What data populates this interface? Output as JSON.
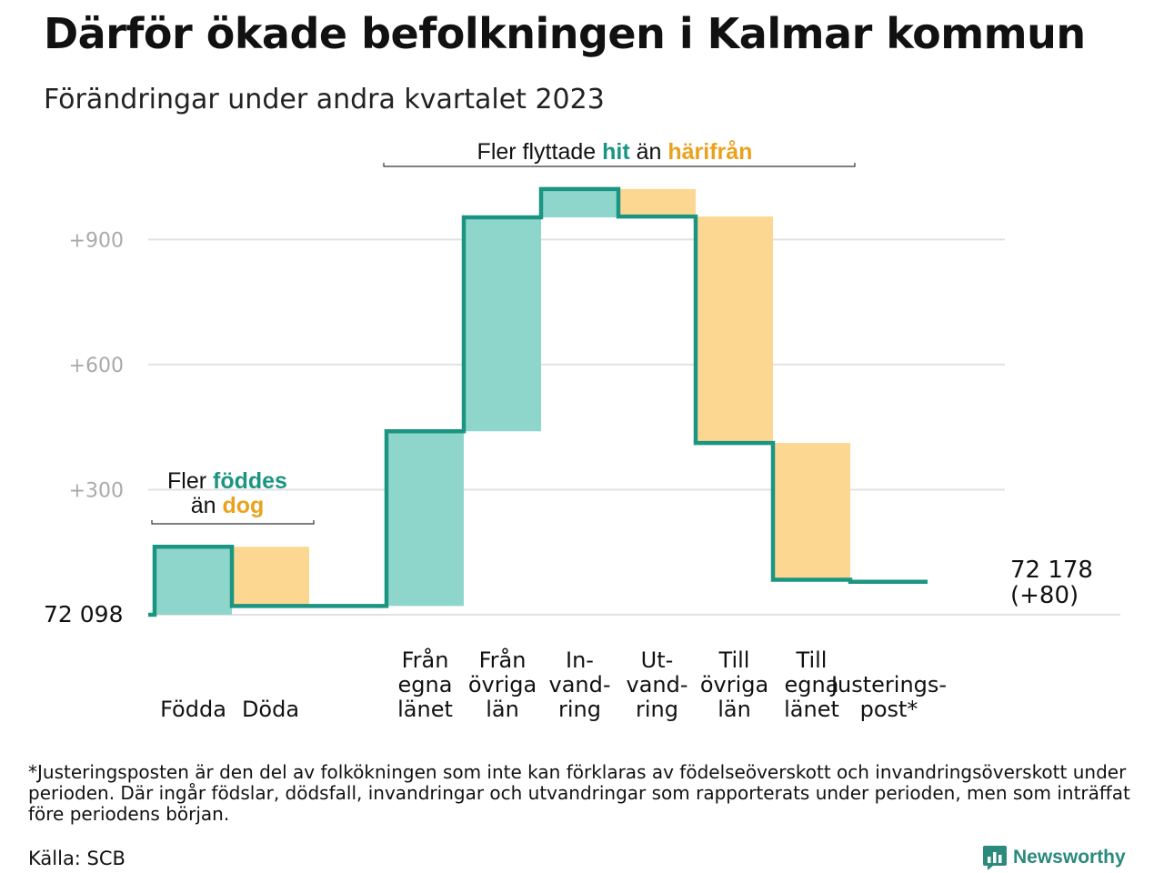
{
  "header": {
    "title": "Därför ökade befolkningen i Kalmar kommun",
    "subtitle": "Förändringar under andra kvartalet 2023"
  },
  "colors": {
    "increase_fill": "#8ed6cb",
    "decrease_fill": "#fcd792",
    "step_line": "#1b9582",
    "accent_teal": "#1b9582",
    "accent_orange": "#eaa21e",
    "grid": "#e2e2e2",
    "tick_text": "#aaaaaa"
  },
  "chart_data": {
    "type": "waterfall",
    "title": "Därför ökade befolkningen i Kalmar kommun",
    "subtitle": "Förändringar under andra kvartalet 2023",
    "start_label": "72  098",
    "start_population": 72098,
    "end_label": [
      "72 178",
      "(+80)"
    ],
    "end_population": 72178,
    "net_change": 80,
    "y_ticks": [
      {
        "value": 300,
        "label": "+300"
      },
      {
        "value": 600,
        "label": "+600"
      },
      {
        "value": 900,
        "label": "+900"
      }
    ],
    "ylim": [
      0,
      1030
    ],
    "grid": true,
    "steps": [
      {
        "label": [
          "Födda"
        ],
        "change": 163,
        "kind": "increase",
        "gap_after": false
      },
      {
        "label": [
          "Döda"
        ],
        "change": -142,
        "kind": "decrease",
        "gap_after": true
      },
      {
        "label": [
          "Från",
          "egna",
          "länet"
        ],
        "change": 419,
        "kind": "increase",
        "gap_after": false
      },
      {
        "label": [
          "Från",
          "övriga",
          "län"
        ],
        "change": 513,
        "kind": "increase",
        "gap_after": false
      },
      {
        "label": [
          "In-",
          "vand-",
          "ring"
        ],
        "change": 68,
        "kind": "increase",
        "gap_after": false
      },
      {
        "label": [
          "Ut-",
          "vand-",
          "ring"
        ],
        "change": -66,
        "kind": "decrease",
        "gap_after": false
      },
      {
        "label": [
          "Till",
          "övriga",
          "län"
        ],
        "change": -543,
        "kind": "decrease",
        "gap_after": false
      },
      {
        "label": [
          "Till",
          "egna",
          "länet"
        ],
        "change": -328,
        "kind": "decrease",
        "gap_after": false
      },
      {
        "label": [
          "Justerings-",
          "post*"
        ],
        "change": -5,
        "kind": "adjustment",
        "gap_after": false
      }
    ],
    "annotations": [
      {
        "id": "births",
        "parts": [
          {
            "text": "Fler ",
            "style": "plain"
          },
          {
            "text": "föddes",
            "style": "teal"
          },
          {
            "text": "än ",
            "style": "plain",
            "newline": true
          },
          {
            "text": "dog",
            "style": "orange"
          }
        ]
      },
      {
        "id": "migration",
        "parts": [
          {
            "text": "Fler flyttade ",
            "style": "plain"
          },
          {
            "text": "hit",
            "style": "teal"
          },
          {
            "text": " än ",
            "style": "plain"
          },
          {
            "text": "härifrån",
            "style": "orange"
          }
        ]
      }
    ]
  },
  "footer": {
    "footnote": "*Justeringsposten är den del av folkökningen som inte kan förklaras av födelseöverskott och invandringsöverskott under perioden. Där ingår födslar, dödsfall, invandringar och utvandringar som rapporterats under perioden, men som inträffat före periodens början.",
    "source": "Källa: SCB",
    "brand": "Newsworthy",
    "brand_icon": "newsworthy-logo-icon"
  }
}
